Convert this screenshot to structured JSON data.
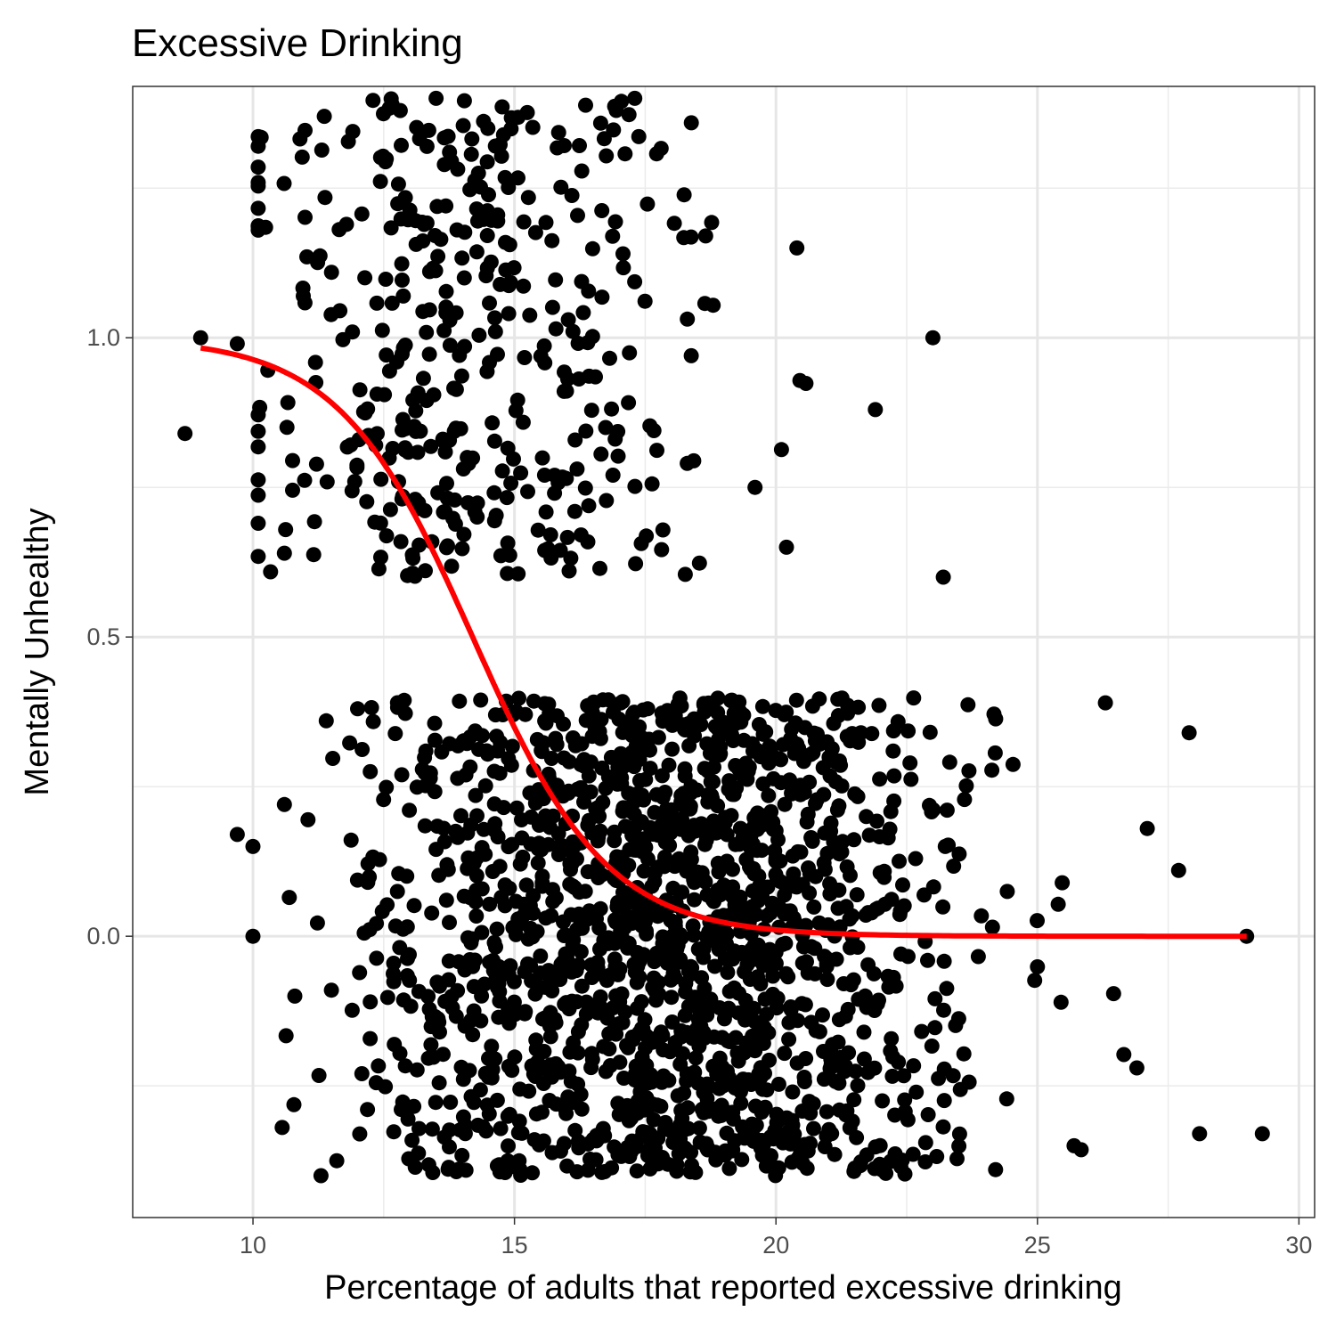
{
  "chart_data": {
    "type": "scatter",
    "title": "Excessive Drinking",
    "xlabel": "Percentage of adults that reported excessive drinking",
    "ylabel": "Mentally Unhealthy",
    "xlim": [
      7.7,
      30.3
    ],
    "ylim": [
      -0.47,
      1.42
    ],
    "x_ticks": [
      10,
      15,
      20,
      25,
      30
    ],
    "x_tick_labels": [
      "10",
      "15",
      "20",
      "25",
      "30"
    ],
    "y_ticks": [
      0.0,
      0.5,
      1.0
    ],
    "y_tick_labels": [
      "0.0",
      "0.5",
      "1.0"
    ],
    "grid": true,
    "theme": "bw",
    "point_color": "#000000",
    "fit_color": "#ff0000",
    "fit": {
      "type": "logistic",
      "x_range": [
        9,
        29
      ],
      "midpoint": 14.2,
      "slope": -0.78
    },
    "points_note": "jittered binary outcome",
    "outlier_points": [
      {
        "x": 8.7,
        "y": 0.84
      },
      {
        "x": 9.0,
        "y": 1.0
      },
      {
        "x": 9.7,
        "y": 0.99
      },
      {
        "x": 10.1,
        "y": 1.32
      },
      {
        "x": 10.1,
        "y": 0.69
      },
      {
        "x": 10.6,
        "y": 0.64
      },
      {
        "x": 23.0,
        "y": 1.0
      },
      {
        "x": 23.2,
        "y": 0.6
      },
      {
        "x": 21.9,
        "y": 0.88
      },
      {
        "x": 20.2,
        "y": 0.65
      },
      {
        "x": 19.6,
        "y": 0.75
      },
      {
        "x": 20.4,
        "y": 1.15
      },
      {
        "x": 17.3,
        "y": 1.4
      },
      {
        "x": 13.5,
        "y": 1.4
      },
      {
        "x": 9.7,
        "y": 0.17
      },
      {
        "x": 10.0,
        "y": 0.15
      },
      {
        "x": 10.0,
        "y": 0.0
      },
      {
        "x": 10.6,
        "y": 0.22
      },
      {
        "x": 11.3,
        "y": -0.4
      },
      {
        "x": 29.0,
        "y": 0.0
      },
      {
        "x": 29.3,
        "y": -0.33
      },
      {
        "x": 28.1,
        "y": -0.33
      },
      {
        "x": 27.9,
        "y": 0.34
      },
      {
        "x": 27.7,
        "y": 0.11
      },
      {
        "x": 27.1,
        "y": 0.18
      },
      {
        "x": 26.9,
        "y": -0.22
      },
      {
        "x": 26.3,
        "y": 0.39
      },
      {
        "x": 25.7,
        "y": -0.35
      },
      {
        "x": 24.2,
        "y": -0.39
      },
      {
        "x": 10.8,
        "y": -0.1
      },
      {
        "x": 11.5,
        "y": -0.09
      },
      {
        "x": 12.0,
        "y": 0.38
      },
      {
        "x": 11.4,
        "y": 0.36
      }
    ]
  }
}
